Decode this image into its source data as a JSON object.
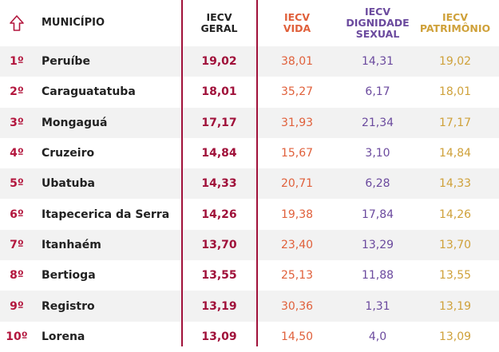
{
  "header": {
    "municipio": "MUNICÍPIO",
    "geral": "IECV\nGERAL",
    "vida": "IECV\nVIDA",
    "dignidade": "IECV\nDIGNIDADE\nSEXUAL",
    "patrimonio": "IECV\nPATRIMÔNIO"
  },
  "rows": [
    {
      "rank": "1º",
      "name": "Peruíbe",
      "geral": "19,02",
      "vida": "38,01",
      "dignidade": "14,31",
      "patrimonio": "19,02"
    },
    {
      "rank": "2º",
      "name": "Caraguatatuba",
      "geral": "18,01",
      "vida": "35,27",
      "dignidade": "6,17",
      "patrimonio": "18,01"
    },
    {
      "rank": "3º",
      "name": "Mongaguá",
      "geral": "17,17",
      "vida": "31,93",
      "dignidade": "21,34",
      "patrimonio": "17,17"
    },
    {
      "rank": "4º",
      "name": "Cruzeiro",
      "geral": "14,84",
      "vida": "15,67",
      "dignidade": "3,10",
      "patrimonio": "14,84"
    },
    {
      "rank": "5º",
      "name": "Ubatuba",
      "geral": "14,33",
      "vida": "20,71",
      "dignidade": "6,28",
      "patrimonio": "14,33"
    },
    {
      "rank": "6º",
      "name": "Itapecerica da Serra",
      "geral": "14,26",
      "vida": "19,38",
      "dignidade": "17,84",
      "patrimonio": "14,26"
    },
    {
      "rank": "7º",
      "name": "Itanhaém",
      "geral": "13,70",
      "vida": "23,40",
      "dignidade": "13,29",
      "patrimonio": "13,70"
    },
    {
      "rank": "8º",
      "name": "Bertioga",
      "geral": "13,55",
      "vida": "25,13",
      "dignidade": "11,88",
      "patrimonio": "13,55"
    },
    {
      "rank": "9º",
      "name": "Registro",
      "geral": "13,19",
      "vida": "30,36",
      "dignidade": "1,31",
      "patrimonio": "13,19"
    },
    {
      "rank": "10º",
      "name": "Lorena",
      "geral": "13,09",
      "vida": "14,50",
      "dignidade": "4,0",
      "patrimonio": "13,09"
    }
  ],
  "icons": {
    "sort": "up-arrow-outline-icon"
  },
  "colors": {
    "accent": "#a0113a",
    "vida": "#e0603b",
    "dignidade": "#6b4a9e",
    "patrimonio": "#cfa13a"
  }
}
